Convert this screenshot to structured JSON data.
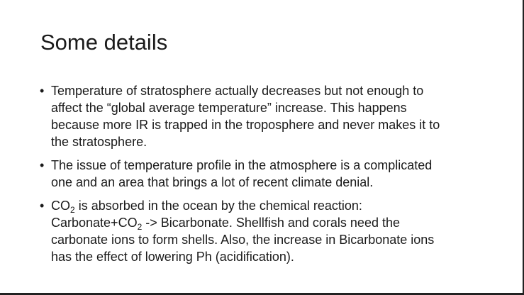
{
  "slide": {
    "title": "Some details",
    "bullet_symbol": "•",
    "bullets": [
      {
        "lines": [
          "Temperature of stratosphere actually decreases but not enough to",
          "affect the “global average temperature” increase.  This happens",
          "because more IR is trapped in the troposphere and never makes it to",
          "the stratosphere."
        ]
      },
      {
        "lines": [
          "The issue of temperature profile in the atmosphere is a complicated",
          "one and an area that brings a lot of recent climate denial."
        ]
      },
      {
        "line1": {
          "pre": "CO",
          "sub": "2",
          "post": " is absorbed in the ocean by the chemical reaction:"
        },
        "line2": {
          "pre": "Carbonate+CO",
          "sub": "2",
          "post": " -> Bicarbonate.  Shellfish and corals need the"
        },
        "line3": "carbonate ions to form shells.  Also, the increase in Bicarbonate ions",
        "line4": "has the effect of lowering Ph (acidification)."
      }
    ]
  }
}
